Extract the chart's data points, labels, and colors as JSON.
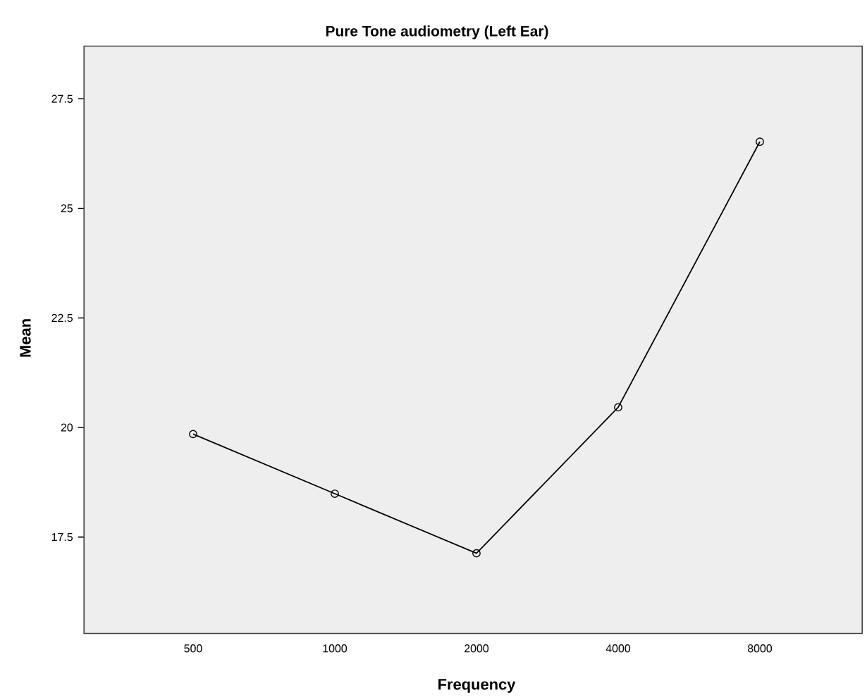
{
  "chart_data": {
    "type": "line",
    "title": "Pure Tone audiometry  (Left Ear)",
    "xlabel": "Frequency",
    "ylabel": "Mean",
    "categories": [
      "500",
      "1000",
      "2000",
      "4000",
      "8000"
    ],
    "series": [
      {
        "color": "#000000",
        "values": [
          19.85,
          18.49,
          17.13,
          20.46,
          26.52
        ]
      }
    ],
    "ylim": [
      15.3,
      28.7
    ],
    "yticks": [
      17.5,
      20,
      22.5,
      25,
      27.5
    ],
    "grid": false,
    "marker": "circle",
    "line_style": "solid"
  }
}
